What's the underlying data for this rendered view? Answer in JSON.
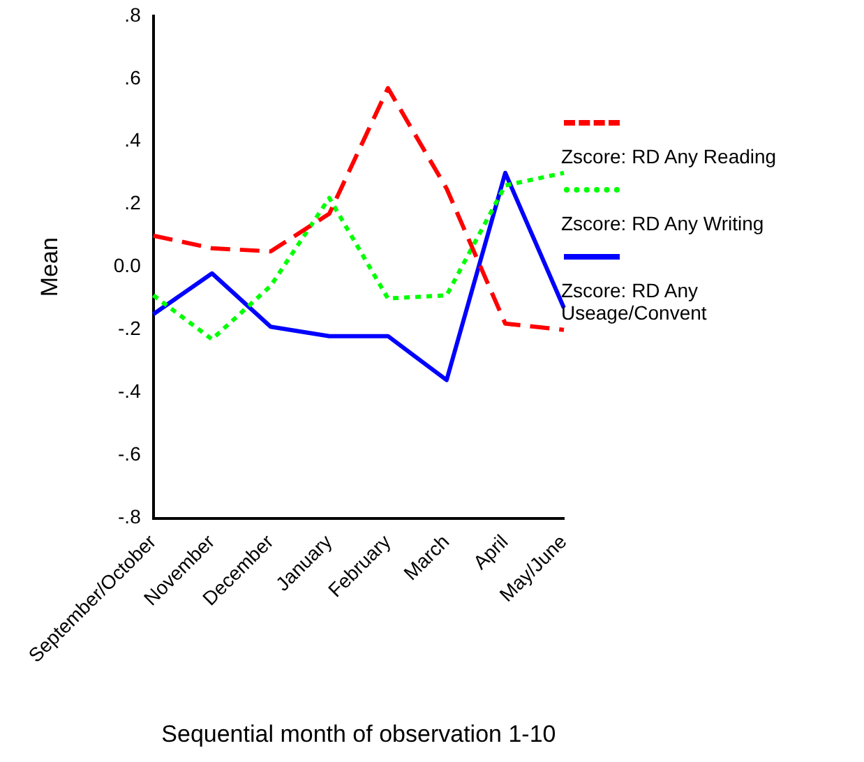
{
  "chart_data": {
    "type": "line",
    "xlabel": "Sequential month of observation 1-10",
    "ylabel": "Mean",
    "categories": [
      "September/October",
      "November",
      "December",
      "January",
      "February",
      "March",
      "April",
      "May/June"
    ],
    "series": [
      {
        "name": "Zscore:  RD Any Reading",
        "color": "#ff0000",
        "line_style": "dashed",
        "values": [
          0.1,
          0.06,
          0.05,
          0.17,
          0.57,
          0.25,
          -0.18,
          -0.2
        ]
      },
      {
        "name": "Zscore:  RD Any Writing",
        "color": "#00ff00",
        "line_style": "dotted",
        "values": [
          -0.09,
          -0.23,
          -0.06,
          0.22,
          -0.1,
          -0.09,
          0.26,
          0.3
        ]
      },
      {
        "name": "Zscore:  RD Any Useage/Convent",
        "color": "#0000ff",
        "line_style": "solid",
        "values": [
          -0.15,
          -0.02,
          -0.19,
          -0.22,
          -0.22,
          -0.36,
          0.3,
          -0.13
        ]
      }
    ],
    "ylim": [
      -0.8,
      0.8
    ],
    "yticks": [
      {
        "value": -0.8,
        "label": "-.8"
      },
      {
        "value": -0.6,
        "label": "-.6"
      },
      {
        "value": -0.4,
        "label": "-.4"
      },
      {
        "value": -0.2,
        "label": "-.2"
      },
      {
        "value": 0,
        "label": "0.0"
      },
      {
        "value": 0.2,
        "label": ".2"
      },
      {
        "value": 0.4,
        "label": ".4"
      },
      {
        "value": 0.6,
        "label": ".6"
      },
      {
        "value": 0.8,
        "label": ".8"
      }
    ],
    "grid": false,
    "legend": "right",
    "marker": "none"
  }
}
